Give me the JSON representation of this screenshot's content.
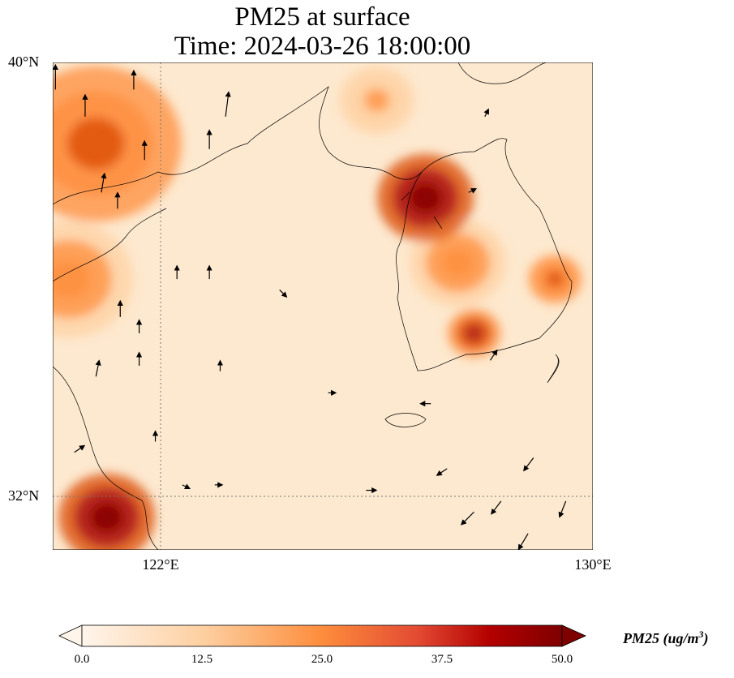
{
  "title": {
    "line1": "PM25 at surface",
    "line2": "Time: 2024-03-26 18:00:00"
  },
  "chart_data": {
    "type": "heatmap",
    "variable": "PM25",
    "title": "PM25 at surface",
    "time": "2024-03-26 18:00:00",
    "extent": {
      "lon": [
        120,
        130
      ],
      "lat": [
        31,
        40
      ]
    },
    "lat_ticks": [
      {
        "value": 40,
        "label": "40°N"
      },
      {
        "value": 32,
        "label": "32°N"
      }
    ],
    "lon_ticks": [
      {
        "value": 122,
        "label": "122°E"
      },
      {
        "value": 130,
        "label": "130°E"
      }
    ],
    "gridlines": {
      "lon": [
        122
      ],
      "lat": [
        32
      ]
    },
    "colorbar": {
      "label": "PM25 (ug/m³)",
      "label_text": "PM25 (ug/m",
      "label_sup": "3",
      "label_close": ")",
      "range": [
        0,
        50
      ],
      "ticks": [
        "0.0",
        "12.5",
        "25.0",
        "37.5",
        "50.0"
      ],
      "colormap": [
        "#fff5eb",
        "#fdd0a2",
        "#fd8d3c",
        "#d94801",
        "#a50f15",
        "#7f0000"
      ],
      "extend": "both"
    },
    "hotspots": [
      {
        "lon": 126.9,
        "lat": 37.5,
        "value": 50,
        "spread": 0.9
      },
      {
        "lon": 121.0,
        "lat": 31.6,
        "value": 50,
        "spread": 0.9
      },
      {
        "lon": 120.8,
        "lat": 38.5,
        "value": 25,
        "spread": 1.6
      },
      {
        "lon": 120.3,
        "lat": 36.0,
        "value": 22,
        "spread": 1.2
      },
      {
        "lon": 127.8,
        "lat": 35.0,
        "value": 35,
        "spread": 0.5
      },
      {
        "lon": 129.3,
        "lat": 36.0,
        "value": 30,
        "spread": 0.5
      },
      {
        "lon": 127.5,
        "lat": 36.3,
        "value": 20,
        "spread": 0.9
      },
      {
        "lon": 126.0,
        "lat": 39.3,
        "value": 15,
        "spread": 0.7
      }
    ],
    "wind_vectors": [
      {
        "lon": 120.05,
        "lat": 39.5,
        "u": 0,
        "v": 0.4
      },
      {
        "lon": 120.6,
        "lat": 39.0,
        "u": 0,
        "v": 0.35
      },
      {
        "lon": 121.5,
        "lat": 39.5,
        "u": 0,
        "v": 0.3
      },
      {
        "lon": 123.2,
        "lat": 39.0,
        "u": 0.05,
        "v": 0.4
      },
      {
        "lon": 121.7,
        "lat": 38.2,
        "u": 0,
        "v": 0.3
      },
      {
        "lon": 122.9,
        "lat": 38.4,
        "u": 0,
        "v": 0.3
      },
      {
        "lon": 120.9,
        "lat": 37.6,
        "u": 0.05,
        "v": 0.3
      },
      {
        "lon": 121.2,
        "lat": 37.3,
        "u": 0,
        "v": 0.25
      },
      {
        "lon": 122.3,
        "lat": 36.0,
        "u": 0,
        "v": 0.2
      },
      {
        "lon": 122.9,
        "lat": 36.0,
        "u": 0,
        "v": 0.2
      },
      {
        "lon": 121.25,
        "lat": 35.3,
        "u": 0,
        "v": 0.25
      },
      {
        "lon": 121.6,
        "lat": 35.0,
        "u": 0,
        "v": 0.2
      },
      {
        "lon": 120.8,
        "lat": 34.2,
        "u": 0.05,
        "v": 0.25
      },
      {
        "lon": 121.6,
        "lat": 34.4,
        "u": 0,
        "v": 0.2
      },
      {
        "lon": 124.2,
        "lat": 35.8,
        "u": 0.1,
        "v": -0.1
      },
      {
        "lon": 121.9,
        "lat": 33.0,
        "u": 0,
        "v": 0.15
      },
      {
        "lon": 122.4,
        "lat": 32.2,
        "u": 0.1,
        "v": -0.05
      },
      {
        "lon": 123.0,
        "lat": 32.2,
        "u": 0.1,
        "v": 0
      },
      {
        "lon": 125.8,
        "lat": 32.1,
        "u": 0.15,
        "v": 0
      },
      {
        "lon": 127.3,
        "lat": 32.5,
        "u": -0.15,
        "v": -0.1
      },
      {
        "lon": 127.8,
        "lat": 31.7,
        "u": -0.2,
        "v": -0.2
      },
      {
        "lon": 128.3,
        "lat": 31.9,
        "u": -0.15,
        "v": -0.2
      },
      {
        "lon": 129.5,
        "lat": 31.9,
        "u": -0.1,
        "v": -0.25
      },
      {
        "lon": 128.8,
        "lat": 31.3,
        "u": -0.15,
        "v": -0.25
      },
      {
        "lon": 128.9,
        "lat": 32.7,
        "u": -0.15,
        "v": -0.2
      },
      {
        "lon": 127.0,
        "lat": 33.7,
        "u": -0.15,
        "v": 0
      },
      {
        "lon": 125.1,
        "lat": 33.9,
        "u": 0.1,
        "v": 0
      },
      {
        "lon": 128.1,
        "lat": 34.5,
        "u": 0.1,
        "v": 0.15
      },
      {
        "lon": 127.7,
        "lat": 37.6,
        "u": 0.1,
        "v": 0.05
      },
      {
        "lon": 128.0,
        "lat": 39.0,
        "u": 0.05,
        "v": 0.1
      },
      {
        "lon": 123.1,
        "lat": 34.3,
        "u": 0,
        "v": 0.15
      },
      {
        "lon": 120.4,
        "lat": 32.8,
        "u": 0.15,
        "v": 0.1
      }
    ]
  }
}
